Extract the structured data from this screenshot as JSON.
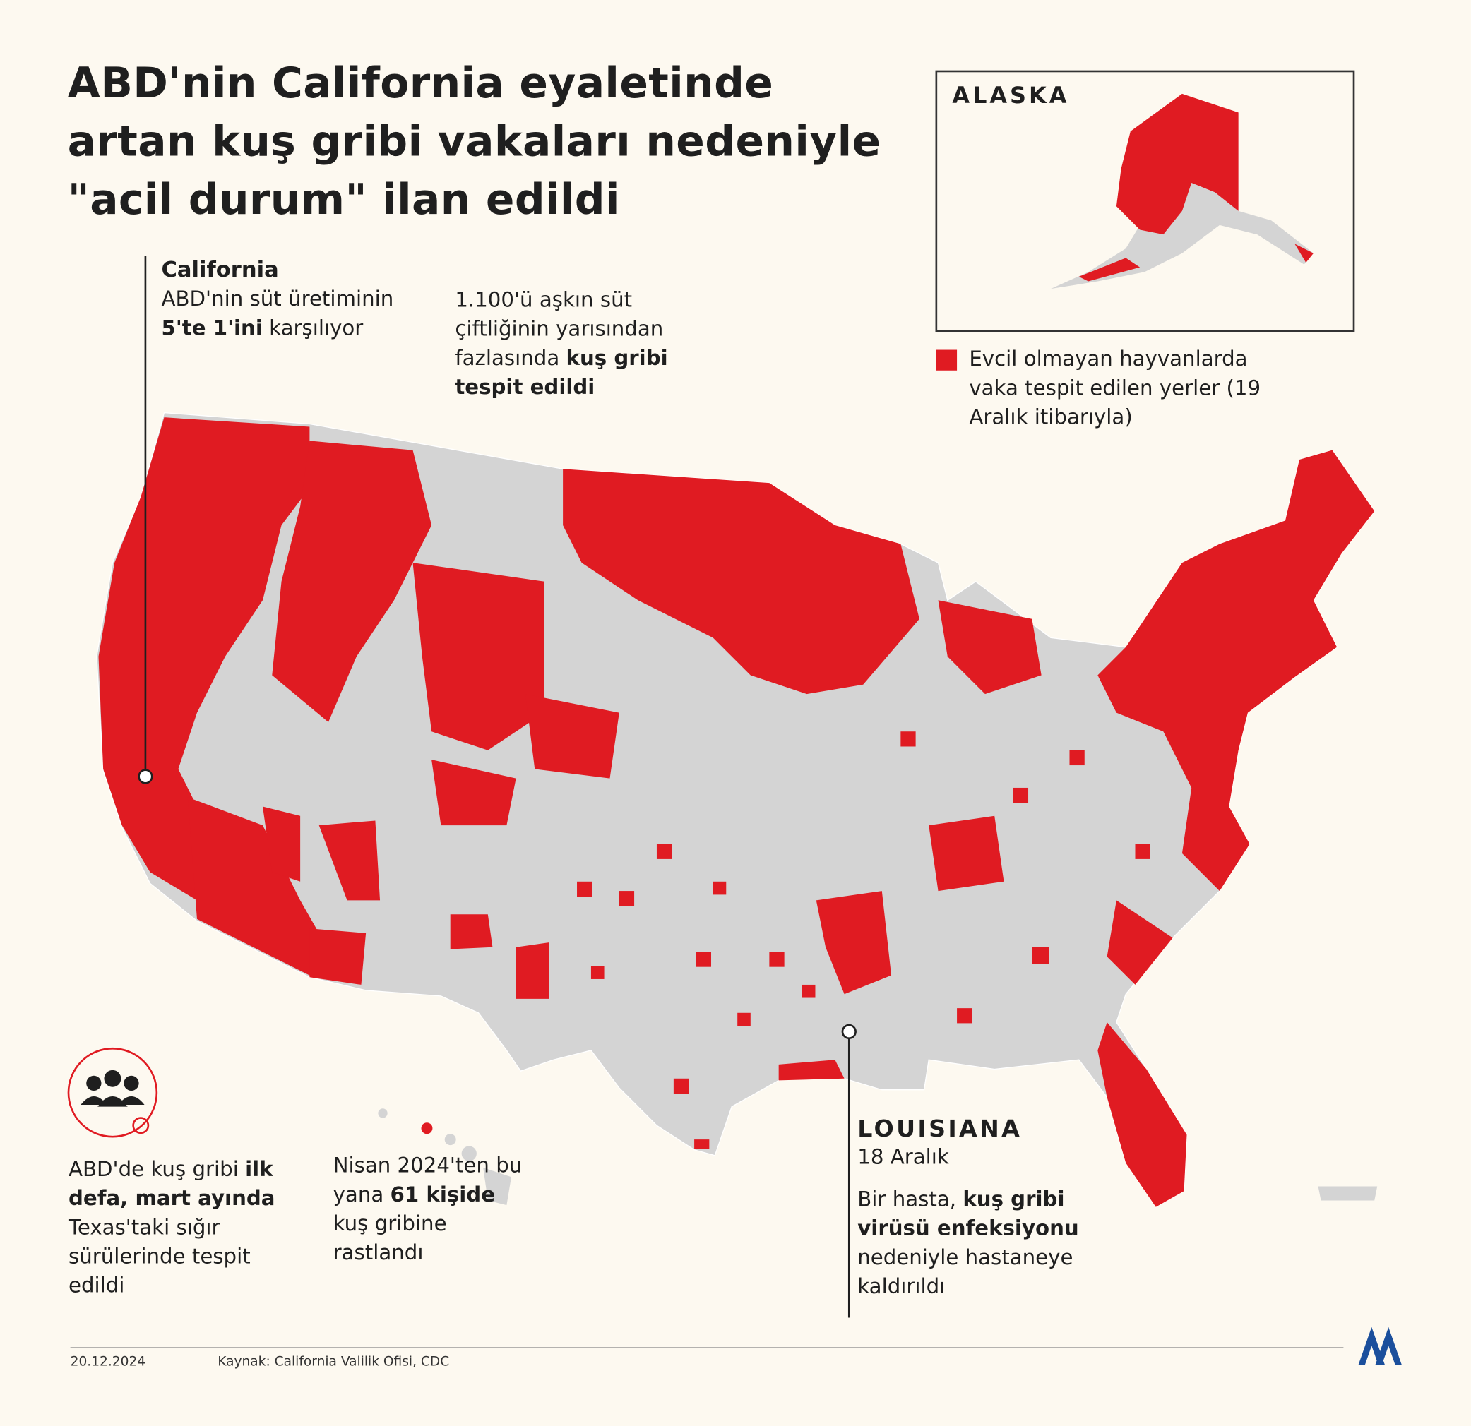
{
  "title_lines": [
    "ABD'nin California eyaletinde",
    "artan kuş gribi vakaları nedeniyle",
    "\"acil durum\" ilan edildi"
  ],
  "inset": {
    "label": "ALASKA"
  },
  "legend": {
    "color": "#e01b22",
    "text": "Evcil olmayan hayvanlarda vaka tespit edilen yerler (19 Aralık itibarıyla)"
  },
  "california": {
    "heading": "California",
    "parts": [
      {
        "text": "ABD'nin süt üretiminin "
      },
      {
        "text": "5'te 1'ini",
        "bold": true
      },
      {
        "text": " karşılıyor"
      }
    ]
  },
  "farms": {
    "parts": [
      {
        "text": "1.100'ü aşkın süt çiftliğinin yarısından fazlasında "
      },
      {
        "text": "kuş gribi tespit edildi",
        "bold": true
      }
    ]
  },
  "texas": {
    "parts": [
      {
        "text": "ABD'de kuş gribi "
      },
      {
        "text": "ilk defa, mart ayında",
        "bold": true
      },
      {
        "text": " Texas'taki sığır sürülerinde tespit edildi"
      }
    ]
  },
  "cases": {
    "parts": [
      {
        "text": "Nisan 2024'ten bu yana "
      },
      {
        "text": "61 kişide",
        "bold": true
      },
      {
        "text": " kuş gribine rastlandı"
      }
    ]
  },
  "louisiana": {
    "heading": "LOUISIANA",
    "date": "18 Aralık",
    "parts": [
      {
        "text": "Bir hasta, "
      },
      {
        "text": "kuş gribi virüsü enfeksiyonu",
        "bold": true
      },
      {
        "text": " nedeniyle hastaneye kaldırıldı"
      }
    ]
  },
  "footer": {
    "date": "20.12.2024",
    "source": "Kaynak: California Valilik Ofisi, CDC"
  }
}
